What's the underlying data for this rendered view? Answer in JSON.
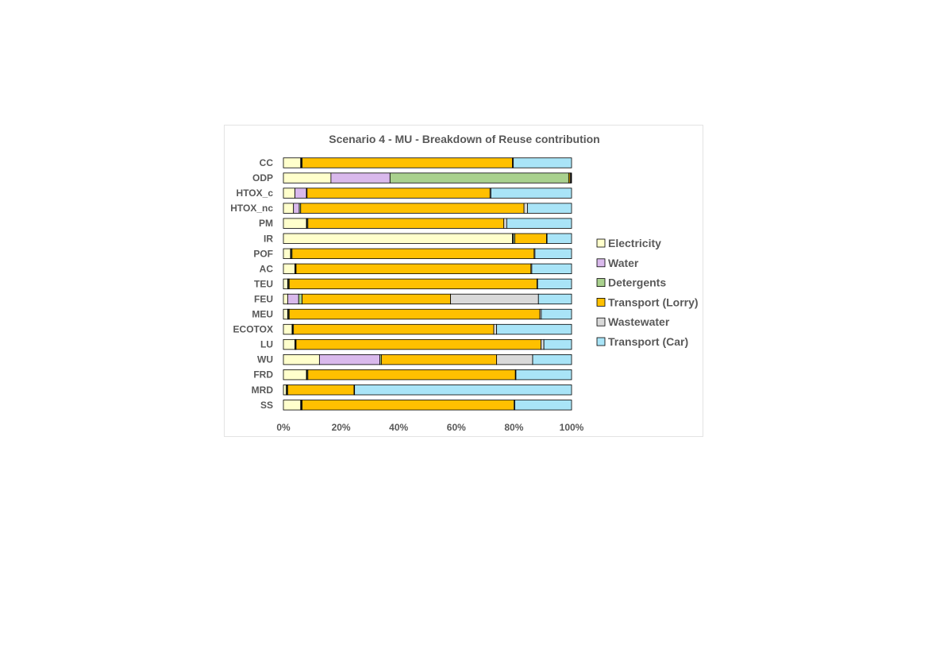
{
  "chart_data": {
    "type": "bar",
    "orientation": "horizontal",
    "stacked": "percent",
    "title": "Scenario 4 - MU - Breakdown of Reuse contribution",
    "categories": [
      "CC",
      "ODP",
      "HTOX_c",
      "HTOX_nc",
      "PM",
      "IR",
      "POF",
      "AC",
      "TEU",
      "FEU",
      "MEU",
      "ECOTOX",
      "LU",
      "WU",
      "FRD",
      "MRD",
      "SS"
    ],
    "x_ticks": [
      "0%",
      "20%",
      "40%",
      "60%",
      "80%",
      "100%"
    ],
    "xlim": [
      0,
      100
    ],
    "legend_position": "right",
    "grid": false,
    "series": [
      {
        "name": "Electricity",
        "color": "#FFFFCC",
        "values": [
          6,
          16.5,
          4,
          3.5,
          8,
          79.5,
          2.5,
          4,
          1.5,
          1.5,
          1.5,
          3,
          4,
          12.5,
          8,
          1,
          6
        ]
      },
      {
        "name": "Water",
        "color": "#D9B9EC",
        "values": [
          0.2,
          20.5,
          4,
          2,
          0.2,
          0.3,
          0.2,
          0.2,
          0.2,
          3.8,
          0.2,
          0.2,
          0.2,
          21,
          0.2,
          0.2,
          0.2
        ]
      },
      {
        "name": "Detergents",
        "color": "#A9D18E",
        "values": [
          0.3,
          62,
          0.2,
          0.5,
          0.3,
          0.5,
          0.3,
          0.2,
          0.3,
          1.2,
          0.3,
          0.3,
          0.2,
          0.5,
          0.3,
          0.3,
          0.3
        ]
      },
      {
        "name": "Transport (Lorry)",
        "color": "#FFC000",
        "values": [
          73,
          0.5,
          63.5,
          77.5,
          68,
          11,
          84,
          81.5,
          86,
          51.5,
          87,
          69.5,
          85,
          40,
          72,
          23,
          73.5
        ]
      },
      {
        "name": "Wastewater",
        "color": "#D9D9D9",
        "values": [
          0.3,
          0.3,
          0.3,
          1.2,
          1,
          0.2,
          0.3,
          0.3,
          0.2,
          30.5,
          0.5,
          1,
          1,
          12.5,
          0.2,
          0.2,
          0.3
        ]
      },
      {
        "name": "Transport (Car)",
        "color": "#A9E4F7",
        "values": [
          20.2,
          0.2,
          28,
          15.3,
          22.5,
          8.5,
          12.7,
          13.8,
          11.8,
          11.5,
          10.5,
          26,
          9.6,
          13.5,
          19.3,
          75.3,
          19.7
        ]
      }
    ]
  }
}
